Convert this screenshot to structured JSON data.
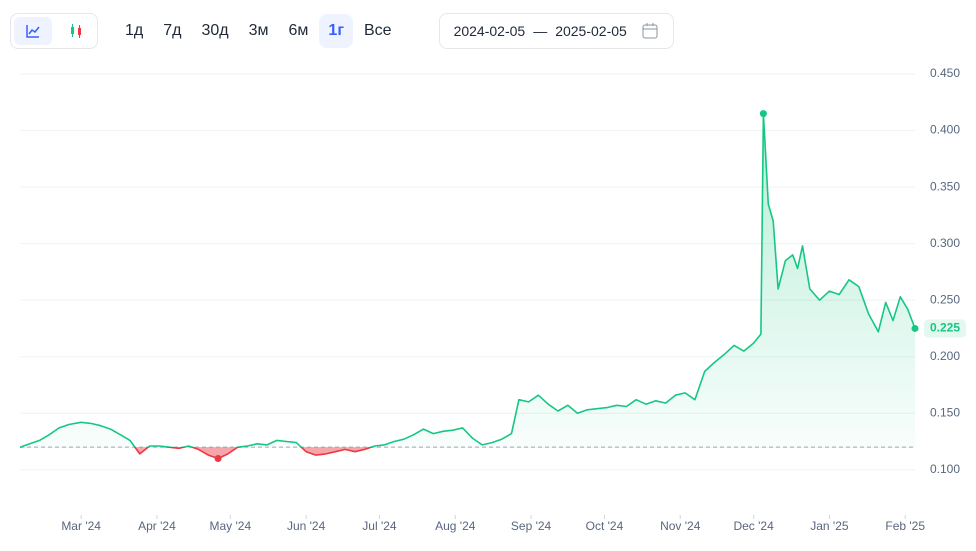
{
  "toolbar": {
    "ranges": [
      "1д",
      "7д",
      "30д",
      "3м",
      "6м",
      "1г",
      "Все"
    ],
    "active_range": "1г",
    "date_from": "2024-02-05",
    "date_sep": "—",
    "date_to": "2025-02-05"
  },
  "chart_data": {
    "type": "line",
    "color": "#16c784",
    "down_color": "#ea3943",
    "x": [
      "2024-02-05",
      "2024-02-09",
      "2024-02-13",
      "2024-02-17",
      "2024-02-21",
      "2024-02-25",
      "2024-03-01",
      "2024-03-05",
      "2024-03-09",
      "2024-03-13",
      "2024-03-17",
      "2024-03-21",
      "2024-03-25",
      "2024-03-29",
      "2024-04-02",
      "2024-04-06",
      "2024-04-10",
      "2024-04-14",
      "2024-04-18",
      "2024-04-22",
      "2024-04-26",
      "2024-04-30",
      "2024-05-04",
      "2024-05-08",
      "2024-05-12",
      "2024-05-16",
      "2024-05-20",
      "2024-05-24",
      "2024-05-28",
      "2024-06-01",
      "2024-06-05",
      "2024-06-09",
      "2024-06-13",
      "2024-06-17",
      "2024-06-21",
      "2024-06-25",
      "2024-06-29",
      "2024-07-03",
      "2024-07-07",
      "2024-07-11",
      "2024-07-15",
      "2024-07-19",
      "2024-07-23",
      "2024-07-27",
      "2024-07-31",
      "2024-08-04",
      "2024-08-08",
      "2024-08-12",
      "2024-08-16",
      "2024-08-20",
      "2024-08-24",
      "2024-08-27",
      "2024-08-31",
      "2024-09-04",
      "2024-09-08",
      "2024-09-12",
      "2024-09-16",
      "2024-09-20",
      "2024-09-24",
      "2024-09-28",
      "2024-10-02",
      "2024-10-06",
      "2024-10-10",
      "2024-10-14",
      "2024-10-18",
      "2024-10-22",
      "2024-10-26",
      "2024-10-30",
      "2024-11-03",
      "2024-11-07",
      "2024-11-11",
      "2024-11-15",
      "2024-11-19",
      "2024-11-23",
      "2024-11-27",
      "2024-12-01",
      "2024-12-04",
      "2024-12-05",
      "2024-12-07",
      "2024-12-09",
      "2024-12-11",
      "2024-12-14",
      "2024-12-17",
      "2024-12-19",
      "2024-12-21",
      "2024-12-24",
      "2024-12-28",
      "2025-01-01",
      "2025-01-05",
      "2025-01-09",
      "2025-01-13",
      "2025-01-17",
      "2025-01-21",
      "2025-01-24",
      "2025-01-27",
      "2025-01-30",
      "2025-02-02",
      "2025-02-05"
    ],
    "values": [
      0.12,
      0.123,
      0.126,
      0.131,
      0.137,
      0.14,
      0.142,
      0.141,
      0.139,
      0.136,
      0.131,
      0.126,
      0.114,
      0.121,
      0.121,
      0.12,
      0.119,
      0.121,
      0.118,
      0.113,
      0.11,
      0.114,
      0.12,
      0.121,
      0.123,
      0.122,
      0.126,
      0.125,
      0.124,
      0.116,
      0.113,
      0.114,
      0.116,
      0.118,
      0.116,
      0.118,
      0.121,
      0.122,
      0.125,
      0.127,
      0.131,
      0.136,
      0.132,
      0.134,
      0.135,
      0.137,
      0.128,
      0.122,
      0.124,
      0.127,
      0.132,
      0.162,
      0.16,
      0.166,
      0.158,
      0.152,
      0.157,
      0.15,
      0.153,
      0.154,
      0.155,
      0.157,
      0.156,
      0.162,
      0.158,
      0.161,
      0.159,
      0.166,
      0.168,
      0.162,
      0.187,
      0.195,
      0.202,
      0.21,
      0.205,
      0.212,
      0.22,
      0.415,
      0.335,
      0.32,
      0.26,
      0.285,
      0.29,
      0.278,
      0.298,
      0.26,
      0.25,
      0.258,
      0.255,
      0.268,
      0.262,
      0.238,
      0.222,
      0.248,
      0.232,
      0.253,
      0.242,
      0.225
    ],
    "xlim": [
      "2024-02-05",
      "2025-02-05"
    ],
    "xticks": [
      {
        "value": "2024-03-01",
        "label": "Mar '24"
      },
      {
        "value": "2024-04-01",
        "label": "Apr '24"
      },
      {
        "value": "2024-05-01",
        "label": "May '24"
      },
      {
        "value": "2024-06-01",
        "label": "Jun '24"
      },
      {
        "value": "2024-07-01",
        "label": "Jul '24"
      },
      {
        "value": "2024-08-01",
        "label": "Aug '24"
      },
      {
        "value": "2024-09-01",
        "label": "Sep '24"
      },
      {
        "value": "2024-10-01",
        "label": "Oct '24"
      },
      {
        "value": "2024-11-01",
        "label": "Nov '24"
      },
      {
        "value": "2024-12-01",
        "label": "Dec '24"
      },
      {
        "value": "2025-01-01",
        "label": "Jan '25"
      },
      {
        "value": "2025-02-01",
        "label": "Feb '25"
      }
    ],
    "ylim": [
      0.06,
      0.458
    ],
    "yticks": [
      {
        "value": 0.1,
        "label": "0.100"
      },
      {
        "value": 0.15,
        "label": "0.150"
      },
      {
        "value": 0.2,
        "label": "0.200"
      },
      {
        "value": 0.25,
        "label": "0.250"
      },
      {
        "value": 0.3,
        "label": "0.300"
      },
      {
        "value": 0.35,
        "label": "0.350"
      },
      {
        "value": 0.4,
        "label": "0.400"
      },
      {
        "value": 0.45,
        "label": "0.450"
      }
    ],
    "grid": true
  }
}
